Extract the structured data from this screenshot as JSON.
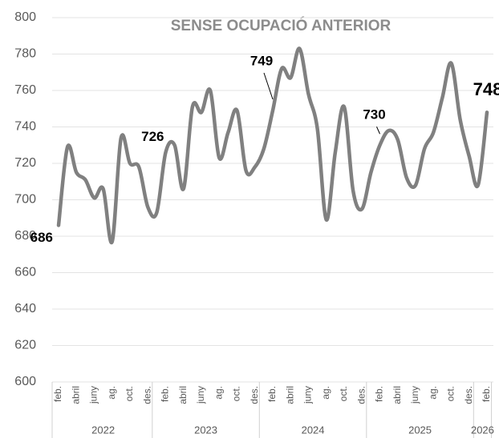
{
  "chart_data": {
    "type": "line",
    "title": "SENSE OCUPACIÓ ANTERIOR",
    "categories": [
      "feb.",
      null,
      "abril",
      null,
      "juny",
      null,
      "ag.",
      null,
      "oct.",
      null,
      "des.",
      null,
      "feb.",
      null,
      "abril",
      null,
      "juny",
      null,
      "ag.",
      null,
      "oct.",
      null,
      "des.",
      null,
      "feb.",
      null,
      "abril",
      null,
      "juny",
      null,
      "ag.",
      null,
      "oct.",
      null,
      "des.",
      null,
      "feb.",
      null,
      "abril",
      null,
      "juny",
      null,
      "ag.",
      null,
      "oct.",
      null,
      "des.",
      null,
      "feb."
    ],
    "year_groups": [
      {
        "label": "2022",
        "months": 11
      },
      {
        "label": "2023",
        "months": 12
      },
      {
        "label": "2024",
        "months": 12
      },
      {
        "label": "2025",
        "months": 12
      },
      {
        "label": "2026",
        "months": 2
      }
    ],
    "series": [
      {
        "color": "#808080",
        "values": [
          686,
          729,
          715,
          711,
          701,
          706,
          677,
          734,
          720,
          718,
          696,
          693,
          726,
          730,
          706,
          751,
          748,
          760,
          723,
          737,
          749,
          716,
          718,
          728,
          749,
          772,
          767,
          783,
          758,
          739,
          689,
          726,
          751,
          705,
          695,
          715,
          730,
          738,
          733,
          712,
          708,
          728,
          737,
          756,
          775,
          744,
          724,
          708,
          748
        ]
      }
    ],
    "ylim": [
      600,
      800
    ],
    "yticks": [
      600,
      620,
      640,
      660,
      680,
      700,
      720,
      740,
      760,
      780,
      800
    ],
    "grid": true
  }
}
